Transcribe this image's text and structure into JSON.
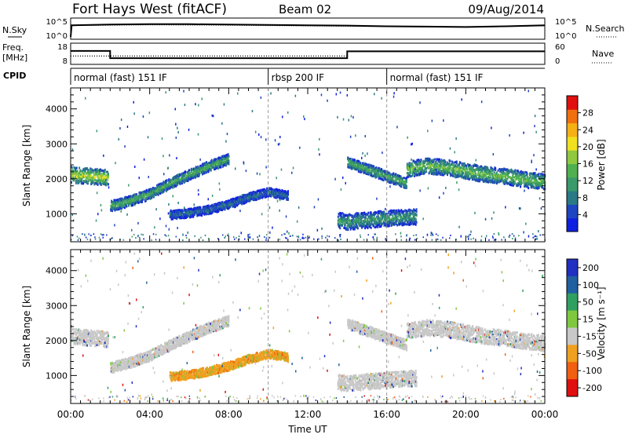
{
  "header": {
    "station": "Fort Hays West (fitACF)",
    "beam": "Beam 02",
    "date": "09/Aug/2014"
  },
  "chart_data": [
    {
      "type": "line",
      "panel": "noise",
      "left_label": "N.Sky",
      "right_label": "N.Search",
      "left_ticks": [
        "10^5",
        "10^0"
      ],
      "right_ticks": [
        "10^5",
        "10^0"
      ],
      "series": [
        {
          "name": "N.Sky",
          "style": "solid",
          "x": [
            0,
            0.05,
            1,
            2,
            4,
            6,
            8,
            10,
            12,
            14,
            16,
            18,
            20,
            22,
            24
          ],
          "values": [
            0.2,
            3.6,
            3.7,
            3.8,
            3.9,
            3.9,
            3.8,
            3.7,
            3.6,
            3.5,
            3.3,
            3.2,
            3.1,
            3.3,
            3.6
          ]
        },
        {
          "name": "N.Search",
          "style": "dotted",
          "x": [
            0,
            0.05,
            2,
            4,
            8,
            12,
            16,
            20,
            24
          ],
          "values": [
            0.2,
            3.5,
            3.6,
            3.7,
            3.6,
            3.4,
            3.2,
            3.0,
            3.4
          ]
        }
      ]
    },
    {
      "type": "line",
      "panel": "frequency",
      "left_label": "Freq.",
      "left_unit": "[MHz]",
      "right_label": "Nave",
      "left_ticks": [
        "18",
        "8"
      ],
      "right_ticks": [
        "60",
        "0"
      ],
      "left_range": [
        8,
        18
      ],
      "right_range": [
        0,
        60
      ],
      "series": [
        {
          "name": "Freq.",
          "style": "solid",
          "x": [
            0,
            2,
            2,
            14,
            14,
            24
          ],
          "values": [
            15,
            15,
            11,
            11,
            14.8,
            14.8
          ]
        },
        {
          "name": "Nave",
          "style": "dotted",
          "x": [
            0,
            2,
            2,
            14,
            14,
            24
          ],
          "values": [
            25,
            25,
            25,
            25,
            40,
            40
          ]
        }
      ]
    },
    {
      "type": "table",
      "panel": "cpid",
      "label": "CPID",
      "segments": [
        {
          "start": 0,
          "end": 10,
          "text": "normal (fast) 151 IF"
        },
        {
          "start": 10,
          "end": 16,
          "text": "rbsp 200 IF"
        },
        {
          "start": 16,
          "end": 24,
          "text": "normal (fast) 151 IF"
        }
      ]
    },
    {
      "type": "heatmap",
      "panel": "power",
      "ylabel": "Slant Range [km]",
      "xlim": [
        0,
        24
      ],
      "ylim": [
        200,
        4600
      ],
      "yticks": [
        1000,
        2000,
        3000,
        4000
      ],
      "colorbar": {
        "label": "Power [dB]",
        "range": [
          0,
          32
        ],
        "ticks": [
          4,
          8,
          12,
          16,
          20,
          24,
          28
        ],
        "colors": [
          "#1020e0",
          "#2045c0",
          "#2a7a85",
          "#3a9a6a",
          "#50b050",
          "#90c840",
          "#f0e020",
          "#f5b015",
          "#f07010",
          "#e01010"
        ]
      },
      "features": [
        {
          "name": "morning band",
          "x": [
            0,
            0.5,
            1.0,
            1.5,
            1.9
          ],
          "y": [
            2150,
            2120,
            2100,
            2080,
            2060
          ],
          "width": 450,
          "level": 20
        },
        {
          "name": "dawn rising band",
          "x": [
            2.0,
            3.0,
            4.0,
            5.0,
            6.0,
            7.0,
            8.0
          ],
          "y": [
            1250,
            1400,
            1600,
            1900,
            2150,
            2400,
            2600
          ],
          "width": 300,
          "level": 14
        },
        {
          "name": "midday lower band",
          "x": [
            5.0,
            6.0,
            7.0,
            8.0,
            9.0,
            10.0,
            11.0
          ],
          "y": [
            1000,
            1050,
            1150,
            1300,
            1500,
            1650,
            1550
          ],
          "width": 250,
          "level": 8
        },
        {
          "name": "afternoon lower band",
          "x": [
            13.5,
            14.0,
            15.0,
            16.0,
            17.5
          ],
          "y": [
            850,
            800,
            850,
            900,
            950
          ],
          "width": 450,
          "level": 12
        },
        {
          "name": "afternoon descending band",
          "x": [
            14.0,
            15.0,
            16.0,
            17.0
          ],
          "y": [
            2500,
            2300,
            2100,
            1900
          ],
          "width": 300,
          "level": 14
        },
        {
          "name": "evening band",
          "x": [
            17.0,
            18.0,
            19.0,
            20.0,
            21.0,
            22.0,
            23.0,
            24.0
          ],
          "y": [
            2300,
            2400,
            2350,
            2250,
            2150,
            2100,
            2000,
            1950
          ],
          "width": 450,
          "level": 16
        }
      ]
    },
    {
      "type": "heatmap",
      "panel": "velocity",
      "ylabel": "Slant Range [km]",
      "xlabel": "Time UT",
      "xlim": [
        0,
        24
      ],
      "ylim": [
        200,
        4600
      ],
      "yticks": [
        1000,
        2000,
        3000,
        4000
      ],
      "xticks": [
        "00:00",
        "04:00",
        "08:00",
        "12:00",
        "16:00",
        "20:00",
        "00:00"
      ],
      "colorbar": {
        "label": "Velocity [m s⁻¹]",
        "ticks": [
          "200",
          "100",
          "50",
          "15",
          "-15",
          "-50",
          "-100",
          "-200"
        ],
        "colors": [
          "#2030c0",
          "#2060a0",
          "#30a060",
          "#80c840",
          "#c8c8c8",
          "#f0a020",
          "#f06010",
          "#e01010"
        ]
      },
      "features": [
        {
          "name": "morning band",
          "x": [
            0,
            0.5,
            1.0,
            1.5,
            1.9
          ],
          "y": [
            2150,
            2120,
            2100,
            2080,
            2060
          ],
          "width": 450,
          "velocity": 0
        },
        {
          "name": "dawn rising band",
          "x": [
            2.0,
            3.0,
            4.0,
            5.0,
            6.0,
            7.0,
            8.0
          ],
          "y": [
            1250,
            1400,
            1600,
            1900,
            2150,
            2400,
            2600
          ],
          "width": 300,
          "velocity": 0
        },
        {
          "name": "midday lower band",
          "x": [
            5.0,
            6.0,
            7.0,
            8.0,
            9.0,
            10.0,
            11.0
          ],
          "y": [
            1000,
            1050,
            1150,
            1300,
            1500,
            1650,
            1550
          ],
          "width": 250,
          "velocity": -60
        },
        {
          "name": "afternoon lower band",
          "x": [
            13.5,
            14.0,
            15.0,
            16.0,
            17.5
          ],
          "y": [
            850,
            800,
            850,
            900,
            950
          ],
          "width": 450,
          "velocity": 0
        },
        {
          "name": "afternoon descending band",
          "x": [
            14.0,
            15.0,
            16.0,
            17.0
          ],
          "y": [
            2500,
            2300,
            2100,
            1900
          ],
          "width": 300,
          "velocity": 0
        },
        {
          "name": "evening band",
          "x": [
            17.0,
            18.0,
            19.0,
            20.0,
            21.0,
            22.0,
            23.0,
            24.0
          ],
          "y": [
            2300,
            2400,
            2350,
            2250,
            2150,
            2100,
            2000,
            1950
          ],
          "width": 450,
          "velocity": 0
        }
      ]
    }
  ]
}
